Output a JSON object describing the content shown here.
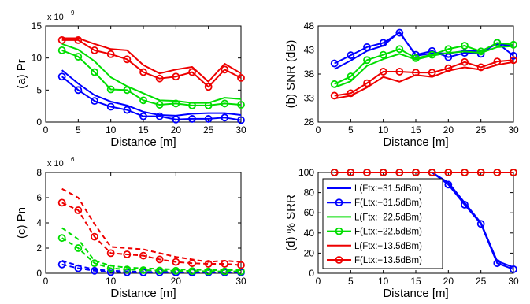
{
  "chart_data": [
    {
      "type": "line",
      "ylabel": "(a) Pr",
      "xlabel": "Distance [m]",
      "xlim": [
        0,
        30
      ],
      "ylim": [
        0,
        15
      ],
      "xticks": [
        0,
        5,
        10,
        15,
        20,
        25,
        30
      ],
      "yticks": [
        0,
        5,
        10,
        15
      ],
      "xtick_labels": [
        "0",
        "5",
        "10",
        "15",
        "20",
        "25",
        "30"
      ],
      "ytick_labels": [
        "0",
        "5",
        "10",
        "15"
      ],
      "multiplier": "x 10",
      "multiplier_exp": "9",
      "x": [
        2.5,
        5,
        7.5,
        10,
        12.5,
        15,
        17.5,
        20,
        22.5,
        25,
        27.5,
        30
      ],
      "series": [
        {
          "color": "#0000ff",
          "marker": false,
          "dashed": false,
          "values": [
            8.1,
            6.0,
            4.2,
            3.2,
            2.6,
            1.6,
            1.1,
            1.0,
            1.3,
            1.4,
            1.4,
            1.1
          ]
        },
        {
          "color": "#0000ff",
          "marker": true,
          "dashed": false,
          "values": [
            7.1,
            5.0,
            3.3,
            2.4,
            1.9,
            0.9,
            0.9,
            0.4,
            0.5,
            0.5,
            0.7,
            0.3
          ]
        },
        {
          "color": "#00dd00",
          "marker": false,
          "dashed": false,
          "values": [
            12.2,
            11.3,
            9.5,
            7.0,
            5.6,
            4.5,
            3.4,
            3.3,
            3.0,
            3.0,
            3.8,
            3.6
          ]
        },
        {
          "color": "#00dd00",
          "marker": true,
          "dashed": false,
          "values": [
            11.2,
            10.2,
            7.8,
            5.1,
            5.0,
            3.4,
            2.7,
            2.9,
            2.6,
            2.6,
            2.9,
            2.7
          ]
        },
        {
          "color": "#ee0000",
          "marker": false,
          "dashed": false,
          "values": [
            13.1,
            13.1,
            12.2,
            11.4,
            11.2,
            8.9,
            7.6,
            8.2,
            8.6,
            6.3,
            9.1,
            7.6
          ]
        },
        {
          "color": "#ee0000",
          "marker": true,
          "dashed": false,
          "values": [
            12.8,
            12.8,
            11.2,
            10.6,
            9.8,
            7.8,
            6.8,
            7.1,
            7.8,
            5.5,
            8.2,
            6.9
          ]
        }
      ]
    },
    {
      "type": "line",
      "ylabel": "(b) SNR (dB)",
      "xlabel": "Distance [m]",
      "xlim": [
        0,
        30
      ],
      "ylim": [
        28,
        48
      ],
      "xticks": [
        0,
        5,
        10,
        15,
        20,
        25,
        30
      ],
      "yticks": [
        28,
        33,
        38,
        43,
        48
      ],
      "xtick_labels": [
        "0",
        "5",
        "10",
        "15",
        "20",
        "25",
        "30"
      ],
      "ytick_labels": [
        "28",
        "33",
        "38",
        "43",
        "48"
      ],
      "x": [
        2.5,
        5,
        7.5,
        10,
        12.5,
        15,
        17.5,
        20,
        22.5,
        25,
        27.5,
        30
      ],
      "series": [
        {
          "color": "#0000ff",
          "marker": false,
          "dashed": false,
          "values": [
            39.0,
            40.8,
            42.8,
            43.9,
            46.8,
            41.8,
            42.3,
            42.3,
            42.8,
            42.8,
            44.2,
            43.9
          ]
        },
        {
          "color": "#0000ff",
          "marker": true,
          "dashed": false,
          "values": [
            40.2,
            41.9,
            43.6,
            44.5,
            46.6,
            42.0,
            42.8,
            41.5,
            42.4,
            42.2,
            44.5,
            41.8
          ]
        },
        {
          "color": "#00dd00",
          "marker": false,
          "dashed": false,
          "values": [
            35.2,
            36.5,
            39.7,
            41.1,
            42.2,
            41.0,
            41.8,
            42.4,
            42.7,
            42.4,
            43.6,
            43.8
          ]
        },
        {
          "color": "#00dd00",
          "marker": true,
          "dashed": false,
          "values": [
            35.9,
            37.5,
            40.9,
            42.0,
            43.2,
            41.3,
            42.0,
            43.2,
            43.9,
            42.7,
            44.5,
            44.1
          ]
        },
        {
          "color": "#ee0000",
          "marker": false,
          "dashed": false,
          "values": [
            32.9,
            33.5,
            35.2,
            37.4,
            36.4,
            37.8,
            37.4,
            38.7,
            39.4,
            38.9,
            39.9,
            40.5
          ]
        },
        {
          "color": "#ee0000",
          "marker": true,
          "dashed": false,
          "values": [
            33.5,
            34.0,
            36.1,
            38.5,
            38.5,
            38.3,
            38.3,
            39.2,
            40.5,
            39.4,
            40.6,
            40.9
          ]
        }
      ]
    },
    {
      "type": "line",
      "ylabel": "(c) Pn",
      "xlabel": "Distance [m]",
      "xlim": [
        0,
        30
      ],
      "ylim": [
        0,
        8
      ],
      "xticks": [
        0,
        10,
        20,
        30
      ],
      "yticks": [
        0,
        2,
        4,
        6,
        8
      ],
      "xtick_labels": [
        "0",
        "10",
        "20",
        "30"
      ],
      "ytick_labels": [
        "0",
        "2",
        "4",
        "6",
        "8"
      ],
      "multiplier": "x 10",
      "multiplier_exp": "6",
      "x": [
        2.5,
        5,
        7.5,
        10,
        12.5,
        15,
        17.5,
        20,
        22.5,
        25,
        27.5,
        30
      ],
      "series": [
        {
          "color": "#0000ff",
          "marker": false,
          "dashed": true,
          "values": [
            1.0,
            0.6,
            0.3,
            0.2,
            0.15,
            0.1,
            0.1,
            0.1,
            0.1,
            0.1,
            0.1,
            0.1
          ]
        },
        {
          "color": "#0000ff",
          "marker": true,
          "dashed": true,
          "values": [
            0.7,
            0.4,
            0.2,
            0.1,
            0.08,
            0.07,
            0.07,
            0.07,
            0.07,
            0.07,
            0.07,
            0.07
          ]
        },
        {
          "color": "#00dd00",
          "marker": false,
          "dashed": true,
          "values": [
            3.6,
            2.7,
            1.0,
            0.6,
            0.45,
            0.4,
            0.35,
            0.3,
            0.3,
            0.25,
            0.25,
            0.25
          ]
        },
        {
          "color": "#00dd00",
          "marker": true,
          "dashed": true,
          "values": [
            2.8,
            2.0,
            0.8,
            0.4,
            0.3,
            0.25,
            0.22,
            0.2,
            0.18,
            0.15,
            0.15,
            0.15
          ]
        },
        {
          "color": "#ee0000",
          "marker": false,
          "dashed": true,
          "values": [
            6.7,
            6.0,
            3.9,
            2.1,
            2.0,
            1.9,
            1.6,
            1.3,
            1.1,
            0.9,
            1.0,
            0.9
          ]
        },
        {
          "color": "#ee0000",
          "marker": true,
          "dashed": true,
          "values": [
            5.6,
            5.0,
            2.9,
            1.6,
            1.5,
            1.4,
            1.1,
            0.9,
            0.8,
            0.75,
            0.75,
            0.65
          ]
        }
      ]
    },
    {
      "type": "line",
      "ylabel": "(d) % SRR",
      "xlabel": "Distance [m]",
      "xlim": [
        0,
        30
      ],
      "ylim": [
        0,
        100
      ],
      "xticks": [
        0,
        5,
        10,
        15,
        20,
        25,
        30
      ],
      "yticks": [
        0,
        20,
        40,
        60,
        80,
        100
      ],
      "xtick_labels": [
        "0",
        "5",
        "10",
        "15",
        "20",
        "25",
        "30"
      ],
      "ytick_labels": [
        "0",
        "20",
        "40",
        "60",
        "80",
        "100"
      ],
      "x": [
        2.5,
        5,
        7.5,
        10,
        12.5,
        15,
        17.5,
        20,
        22.5,
        25,
        27.5,
        30
      ],
      "legend": [
        "L(Ftx:−31.5dBm)",
        "F(Ltx:−31.5dBm)",
        "L(Ftx:−22.5dBm)",
        "F(Ltx:−22.5dBm)",
        "L(Ftx:−13.5dBm)",
        "F(Ltx:−13.5dBm)"
      ],
      "legend_position": "center",
      "series": [
        {
          "name": "L(Ftx:−31.5dBm)",
          "color": "#0000ff",
          "marker": false,
          "dashed": false,
          "values": [
            100,
            100,
            100,
            100,
            100,
            100,
            100,
            90,
            70,
            50,
            12,
            6
          ]
        },
        {
          "name": "F(Ltx:−31.5dBm)",
          "color": "#0000ff",
          "marker": true,
          "dashed": false,
          "values": [
            100,
            100,
            100,
            100,
            100,
            100,
            100,
            88,
            68,
            49,
            10,
            4
          ]
        },
        {
          "name": "L(Ftx:−22.5dBm)",
          "color": "#00dd00",
          "marker": false,
          "dashed": false,
          "values": [
            100,
            100,
            100,
            100,
            100,
            100,
            100,
            100,
            100,
            100,
            100,
            100
          ]
        },
        {
          "name": "F(Ltx:−22.5dBm)",
          "color": "#00dd00",
          "marker": true,
          "dashed": false,
          "values": [
            100,
            100,
            100,
            100,
            100,
            100,
            100,
            100,
            100,
            100,
            100,
            100
          ]
        },
        {
          "name": "L(Ftx:−13.5dBm)",
          "color": "#ee0000",
          "marker": false,
          "dashed": false,
          "values": [
            100,
            100,
            100,
            100,
            100,
            100,
            100,
            100,
            100,
            100,
            100,
            100
          ]
        },
        {
          "name": "F(Ltx:−13.5dBm)",
          "color": "#ee0000",
          "marker": true,
          "dashed": false,
          "values": [
            100,
            100,
            100,
            100,
            100,
            100,
            100,
            100,
            100,
            100,
            100,
            100
          ]
        }
      ]
    }
  ]
}
